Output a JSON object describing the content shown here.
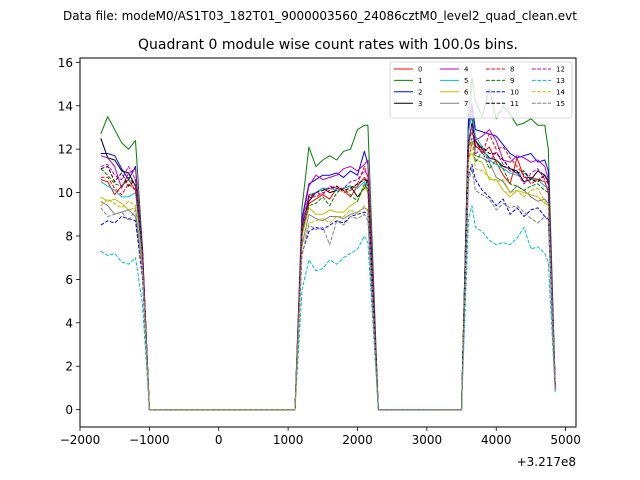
{
  "figure": {
    "suptitle": "Data file: modeM0/AS1T03_182T01_9000003560_24086cztM0_level2_quad_clean.evt"
  },
  "chart_data": {
    "type": "line",
    "title": "Quadrant 0 module wise count rates with 100.0s bins.",
    "xlabel": "",
    "ylabel": "",
    "x_offset_label": "+3.217e8",
    "xlim": [
      -2000,
      5150
    ],
    "ylim": [
      -0.8,
      16.2
    ],
    "xticks": [
      -2000,
      -1000,
      0,
      1000,
      2000,
      3000,
      4000,
      5000
    ],
    "yticks": [
      0,
      2,
      4,
      6,
      8,
      10,
      12,
      14,
      16
    ],
    "legend_position": "top-right",
    "x": [
      -1700,
      -1600,
      -1500,
      -1400,
      -1300,
      -1200,
      -1100,
      -1000,
      1100,
      1200,
      1300,
      1400,
      1500,
      1600,
      1700,
      1800,
      1900,
      2000,
      2100,
      2150,
      2300,
      3400,
      3500,
      3600,
      3650,
      3700,
      3800,
      3900,
      4000,
      4100,
      4200,
      4300,
      4400,
      4500,
      4600,
      4700,
      4750,
      4850
    ],
    "series": [
      {
        "name": "0",
        "color": "#ff0000",
        "dash": "solid",
        "values": [
          10.6,
          10.5,
          9.9,
          10.3,
          10.6,
          10.1,
          7.5,
          0,
          0,
          8.0,
          9.5,
          9.7,
          9.9,
          9.7,
          10.2,
          10.1,
          9.8,
          10.3,
          10.7,
          10.5,
          0,
          0,
          0,
          11.5,
          12.3,
          12.4,
          11.8,
          12.1,
          11.4,
          10.8,
          10.4,
          11.6,
          10.7,
          10.7,
          10.6,
          10.5,
          10.0,
          1.0
        ]
      },
      {
        "name": "1",
        "color": "#008000",
        "dash": "solid",
        "values": [
          12.7,
          13.5,
          12.9,
          12.3,
          12.0,
          12.4,
          7.5,
          0,
          0,
          9.3,
          12.1,
          11.2,
          11.5,
          11.7,
          11.5,
          11.9,
          12.0,
          12.9,
          13.1,
          13.1,
          0,
          0,
          0,
          13.6,
          15.3,
          14.2,
          13.5,
          14.8,
          13.4,
          14.0,
          13.6,
          13.1,
          13.2,
          13.4,
          13.1,
          13.1,
          12.0,
          1.2
        ]
      },
      {
        "name": "2",
        "color": "#0000ff",
        "dash": "solid",
        "values": [
          11.8,
          11.8,
          11.7,
          11.1,
          10.6,
          11.2,
          7.3,
          0,
          0,
          8.8,
          10.4,
          10.6,
          10.8,
          10.8,
          10.9,
          10.7,
          11.0,
          10.8,
          11.9,
          11.3,
          0,
          0,
          0,
          13.2,
          14.1,
          12.9,
          12.8,
          12.7,
          12.6,
          12.2,
          11.8,
          11.6,
          11.7,
          11.8,
          11.4,
          11.5,
          11.0,
          1.1
        ]
      },
      {
        "name": "3",
        "color": "#000000",
        "dash": "solid",
        "values": [
          12.5,
          11.6,
          11.5,
          11.0,
          10.9,
          10.3,
          7.1,
          0,
          0,
          8.5,
          9.6,
          10.0,
          10.2,
          10.0,
          10.1,
          10.2,
          10.3,
          9.8,
          10.2,
          10.6,
          0,
          0,
          0,
          13.0,
          13.5,
          12.4,
          12.0,
          11.6,
          11.5,
          11.2,
          11.1,
          11.0,
          10.5,
          10.6,
          11.0,
          10.8,
          10.5,
          1.1
        ]
      },
      {
        "name": "4",
        "color": "#bf00bf",
        "dash": "solid",
        "values": [
          11.7,
          11.6,
          11.2,
          10.2,
          10.9,
          11.1,
          7.4,
          0,
          0,
          8.6,
          10.3,
          10.8,
          10.6,
          10.7,
          10.8,
          11.1,
          11.2,
          11.0,
          11.3,
          11.5,
          0,
          0,
          0,
          12.8,
          14.0,
          12.4,
          12.6,
          12.9,
          12.4,
          11.5,
          11.4,
          11.7,
          11.6,
          11.4,
          11.5,
          11.2,
          10.6,
          1.1
        ]
      },
      {
        "name": "5",
        "color": "#00bfbf",
        "dash": "solid",
        "values": [
          10.5,
          10.3,
          10.1,
          9.8,
          9.8,
          10.0,
          7.0,
          0,
          0,
          8.3,
          9.9,
          10.0,
          10.2,
          10.2,
          10.1,
          10.2,
          10.3,
          10.2,
          10.5,
          10.3,
          0,
          0,
          0,
          12.8,
          13.6,
          12.6,
          12.1,
          11.5,
          11.3,
          11.1,
          10.9,
          10.8,
          10.9,
          10.6,
          10.6,
          10.3,
          10.2,
          1.0
        ]
      },
      {
        "name": "6",
        "color": "#bfbf00",
        "dash": "solid",
        "values": [
          9.8,
          9.6,
          9.7,
          9.5,
          9.2,
          9.3,
          6.7,
          0,
          0,
          8.0,
          9.3,
          9.0,
          9.0,
          9.2,
          9.1,
          9.1,
          9.4,
          9.6,
          10.3,
          10.0,
          0,
          0,
          0,
          11.6,
          11.8,
          11.5,
          11.4,
          10.6,
          10.6,
          10.1,
          9.8,
          10.1,
          10.0,
          9.9,
          9.8,
          9.5,
          9.4,
          1.0
        ]
      },
      {
        "name": "7",
        "color": "#808080",
        "dash": "solid",
        "values": [
          9.6,
          9.4,
          9.0,
          9.1,
          9.2,
          8.9,
          6.5,
          0,
          0,
          7.6,
          9.0,
          8.8,
          8.7,
          8.9,
          8.9,
          8.8,
          9.0,
          9.1,
          9.3,
          9.2,
          0,
          0,
          0,
          12.0,
          13.2,
          11.7,
          11.6,
          11.4,
          10.7,
          10.5,
          10.0,
          10.3,
          10.1,
          9.8,
          9.6,
          9.7,
          9.5,
          1.0
        ]
      },
      {
        "name": "8",
        "color": "#ff0000",
        "dash": "dashed",
        "values": [
          10.7,
          10.7,
          10.2,
          9.9,
          10.4,
          10.1,
          7.3,
          0,
          0,
          8.1,
          9.9,
          9.8,
          10.0,
          10.1,
          10.3,
          10.0,
          10.1,
          10.4,
          11.2,
          10.7,
          0,
          0,
          0,
          12.4,
          12.8,
          12.2,
          11.8,
          12.7,
          12.0,
          12.1,
          11.6,
          11.2,
          10.8,
          10.4,
          10.6,
          10.8,
          10.4,
          1.0
        ]
      },
      {
        "name": "9",
        "color": "#008000",
        "dash": "dashed",
        "values": [
          11.1,
          10.8,
          10.4,
          10.3,
          10.7,
          10.3,
          7.2,
          0,
          0,
          8.2,
          9.4,
          9.5,
          9.8,
          9.4,
          10.0,
          10.2,
          9.9,
          9.6,
          10.4,
          10.1,
          0,
          0,
          0,
          12.0,
          12.5,
          11.4,
          11.9,
          11.1,
          11.5,
          11.1,
          10.4,
          10.3,
          10.1,
          10.3,
          10.4,
          10.1,
          10.0,
          1.0
        ]
      },
      {
        "name": "10",
        "color": "#0000ff",
        "dash": "dashed",
        "values": [
          8.5,
          8.7,
          8.6,
          8.9,
          8.8,
          8.7,
          6.1,
          0,
          0,
          7.2,
          8.2,
          8.4,
          8.3,
          8.5,
          8.7,
          8.6,
          8.9,
          9.0,
          9.1,
          9.0,
          0,
          0,
          0,
          10.8,
          11.3,
          10.6,
          10.1,
          9.8,
          9.4,
          9.7,
          9.0,
          9.3,
          8.9,
          9.2,
          9.3,
          8.9,
          8.8,
          0.9
        ]
      },
      {
        "name": "11",
        "color": "#000000",
        "dash": "dashed",
        "values": [
          11.1,
          11.2,
          10.5,
          10.9,
          10.3,
          10.6,
          7.4,
          0,
          0,
          8.4,
          9.8,
          10.0,
          10.1,
          10.2,
          10.3,
          10.1,
          10.2,
          10.4,
          10.6,
          10.5,
          0,
          0,
          0,
          12.3,
          13.2,
          12.1,
          12.1,
          11.8,
          11.8,
          11.5,
          11.1,
          10.9,
          11.0,
          10.6,
          10.5,
          10.8,
          10.5,
          1.0
        ]
      },
      {
        "name": "12",
        "color": "#bf00bf",
        "dash": "dashed",
        "values": [
          11.2,
          11.3,
          10.8,
          10.6,
          11.2,
          10.6,
          7.3,
          0,
          0,
          8.4,
          9.7,
          10.0,
          9.9,
          10.3,
          10.2,
          10.2,
          10.5,
          10.6,
          11.0,
          10.8,
          0,
          0,
          0,
          12.4,
          13.1,
          11.8,
          12.0,
          11.4,
          11.9,
          11.3,
          11.0,
          10.9,
          10.4,
          10.9,
          11.1,
          10.6,
          10.4,
          1.0
        ]
      },
      {
        "name": "13",
        "color": "#00bfbf",
        "dash": "dashed",
        "values": [
          7.3,
          7.1,
          7.2,
          6.8,
          6.7,
          7.0,
          4.9,
          0,
          0,
          5.5,
          6.9,
          6.4,
          6.5,
          6.9,
          6.7,
          7.0,
          7.2,
          7.4,
          8.0,
          7.7,
          0,
          0,
          0,
          8.8,
          9.4,
          8.4,
          8.2,
          7.8,
          7.6,
          7.7,
          7.6,
          7.9,
          8.4,
          7.4,
          7.5,
          7.2,
          6.8,
          0.8
        ]
      },
      {
        "name": "14",
        "color": "#bfbf00",
        "dash": "dashed",
        "values": [
          9.4,
          9.7,
          9.5,
          9.3,
          9.6,
          9.4,
          6.6,
          0,
          0,
          7.5,
          8.6,
          8.7,
          8.8,
          8.6,
          8.9,
          8.9,
          9.2,
          9.0,
          9.4,
          9.1,
          0,
          0,
          0,
          11.4,
          12.4,
          11.1,
          11.0,
          10.7,
          10.5,
          10.6,
          10.0,
          10.1,
          9.8,
          10.1,
          10.2,
          9.6,
          9.4,
          0.9
        ]
      },
      {
        "name": "15",
        "color": "#808080",
        "dash": "dashed",
        "values": [
          9.3,
          8.9,
          9.0,
          9.1,
          8.7,
          9.2,
          6.4,
          0,
          0,
          7.1,
          8.5,
          8.3,
          8.4,
          7.6,
          8.7,
          8.5,
          8.9,
          8.8,
          9.0,
          8.7,
          0,
          0,
          0,
          10.5,
          11.1,
          10.1,
          9.9,
          9.7,
          9.2,
          9.5,
          9.3,
          9.4,
          9.1,
          8.8,
          8.6,
          8.9,
          8.7,
          0.9
        ]
      }
    ]
  }
}
